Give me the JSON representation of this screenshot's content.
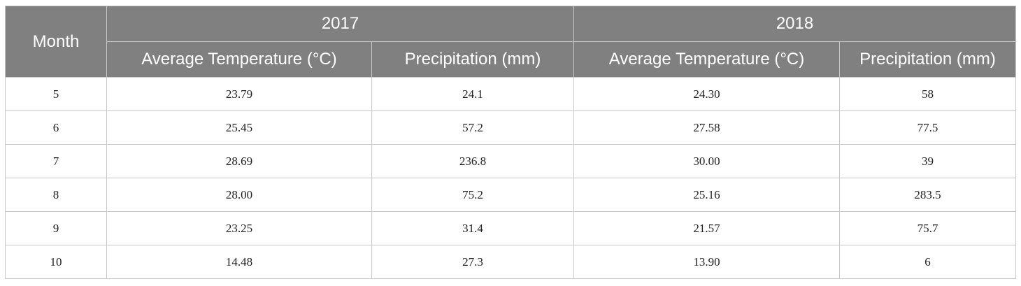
{
  "table": {
    "header": {
      "month_label": "Month",
      "years": [
        "2017",
        "2018"
      ],
      "sub_columns": [
        "Average Temperature (°C)",
        "Precipitation (mm)",
        "Average Temperature (°C)",
        "Precipitation (mm)"
      ]
    },
    "rows": [
      [
        "5",
        "23.79",
        "24.1",
        "24.30",
        "58"
      ],
      [
        "6",
        "25.45",
        "57.2",
        "27.58",
        "77.5"
      ],
      [
        "7",
        "28.69",
        "236.8",
        "30.00",
        "39"
      ],
      [
        "8",
        "28.00",
        "75.2",
        "25.16",
        "283.5"
      ],
      [
        "9",
        "23.25",
        "31.4",
        "21.57",
        "75.7"
      ],
      [
        "10",
        "14.48",
        "27.3",
        "13.90",
        "6"
      ]
    ]
  }
}
